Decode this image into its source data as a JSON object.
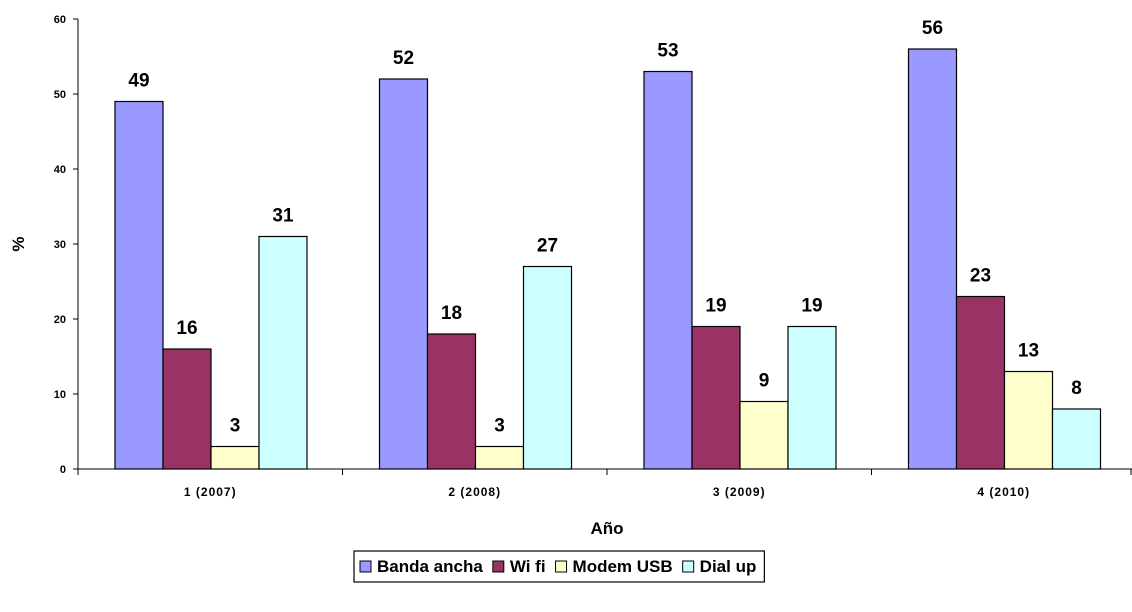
{
  "chart_data": {
    "type": "bar",
    "categories": [
      "1 (2007)",
      "2 (2008)",
      "3 (2009)",
      "4 (2010)"
    ],
    "series": [
      {
        "name": "Banda ancha",
        "values": [
          49,
          52,
          53,
          56
        ],
        "color": "#9999ff"
      },
      {
        "name": "Wi fi",
        "values": [
          16,
          18,
          19,
          23
        ],
        "color": "#993366"
      },
      {
        "name": "Modem USB",
        "values": [
          3,
          3,
          9,
          13
        ],
        "color": "#ffffcc"
      },
      {
        "name": "Dial up",
        "values": [
          31,
          27,
          19,
          8
        ],
        "color": "#ccffff"
      }
    ],
    "xlabel": "Año",
    "ylabel": "%",
    "ylim": [
      0,
      60
    ],
    "yticks": [
      0,
      10,
      20,
      30,
      40,
      50,
      60
    ],
    "grid": false,
    "legend": "bottom",
    "data_labels": true
  }
}
